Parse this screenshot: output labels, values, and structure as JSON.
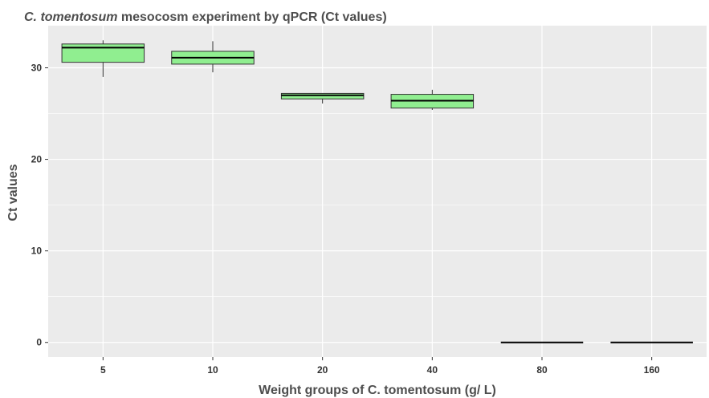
{
  "chart_data": {
    "type": "box",
    "title_italic": "C. tomentosum",
    "title_rest": " mesocosm experiment by qPCR (Ct values)",
    "xlabel": "Weight groups of C. tomentosum (g/ L)",
    "ylabel": "Ct values",
    "categories": [
      "5",
      "10",
      "20",
      "40",
      "80",
      "160"
    ],
    "yticks": [
      0,
      10,
      20,
      30
    ],
    "ylim": [
      -1.6,
      34.6
    ],
    "grid": true,
    "colors": {
      "box_fill": "#90ee90",
      "panel_bg": "#ebebeb",
      "grid": "#ffffff",
      "outline": "#333333",
      "median": "#000000"
    },
    "boxes": [
      {
        "category": "5",
        "min": 29.0,
        "q1": 30.6,
        "median": 32.2,
        "q3": 32.6,
        "max": 33.0
      },
      {
        "category": "10",
        "min": 29.5,
        "q1": 30.4,
        "median": 31.1,
        "q3": 31.8,
        "max": 32.9
      },
      {
        "category": "20",
        "min": 26.1,
        "q1": 26.6,
        "median": 27.0,
        "q3": 27.2,
        "max": 27.2
      },
      {
        "category": "40",
        "min": 25.4,
        "q1": 25.6,
        "median": 26.4,
        "q3": 27.1,
        "max": 27.6
      },
      {
        "category": "80",
        "min": 0,
        "q1": 0,
        "median": 0,
        "q3": 0,
        "max": 0
      },
      {
        "category": "160",
        "min": 0,
        "q1": 0,
        "median": 0,
        "q3": 0,
        "max": 0
      }
    ]
  }
}
